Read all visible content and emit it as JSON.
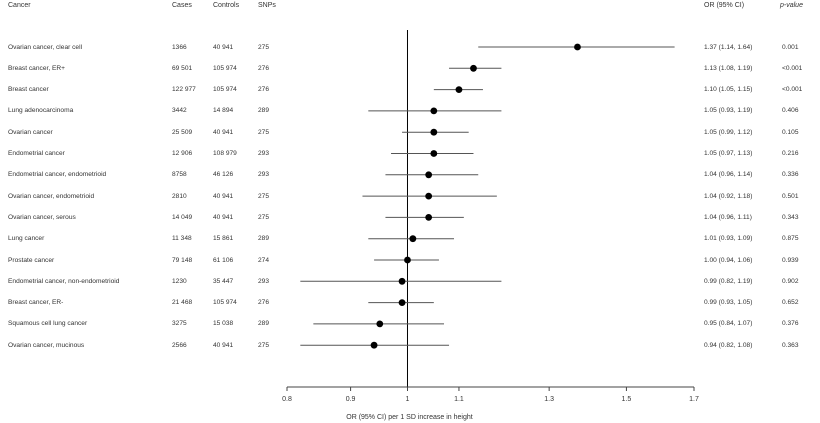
{
  "headers": {
    "cancer": "Cancer",
    "cases": "Cases",
    "controls": "Controls",
    "snps": "SNPs",
    "or": "OR (95% CI)",
    "p": "p-value"
  },
  "chart_data": {
    "type": "forest",
    "xlabel": "OR (95% CI) per 1 SD increase in height",
    "xlim": [
      0.8,
      1.7
    ],
    "xscale": "log",
    "xticks": [
      0.8,
      0.9,
      1,
      1.1,
      1.3,
      1.5,
      1.7
    ],
    "xtick_labels": [
      "0.8",
      "0.9",
      "1",
      "1.1",
      "1.3",
      "1.5",
      "1.7"
    ],
    "reference_line": 1,
    "rows": [
      {
        "cancer": "Ovarian cancer, clear cell",
        "cases": "1366",
        "controls": "40 941",
        "snps": "275",
        "or": 1.37,
        "lo": 1.14,
        "hi": 1.64,
        "or_text": "1.37 (1.14, 1.64)",
        "p": "0.001"
      },
      {
        "cancer": "Breast cancer, ER+",
        "cases": "69 501",
        "controls": "105 974",
        "snps": "276",
        "or": 1.13,
        "lo": 1.08,
        "hi": 1.19,
        "or_text": "1.13 (1.08, 1.19)",
        "p": "<0.001"
      },
      {
        "cancer": "Breast cancer",
        "cases": "122 977",
        "controls": "105 974",
        "snps": "276",
        "or": 1.1,
        "lo": 1.05,
        "hi": 1.15,
        "or_text": "1.10 (1.05, 1.15)",
        "p": "<0.001"
      },
      {
        "cancer": "Lung adenocarcinoma",
        "cases": "3442",
        "controls": "14 894",
        "snps": "289",
        "or": 1.05,
        "lo": 0.93,
        "hi": 1.19,
        "or_text": "1.05 (0.93, 1.19)",
        "p": "0.406"
      },
      {
        "cancer": "Ovarian cancer",
        "cases": "25 509",
        "controls": "40 941",
        "snps": "275",
        "or": 1.05,
        "lo": 0.99,
        "hi": 1.12,
        "or_text": "1.05 (0.99, 1.12)",
        "p": "0.105"
      },
      {
        "cancer": "Endometrial cancer",
        "cases": "12 906",
        "controls": "108 979",
        "snps": "293",
        "or": 1.05,
        "lo": 0.97,
        "hi": 1.13,
        "or_text": "1.05 (0.97, 1.13)",
        "p": "0.216"
      },
      {
        "cancer": "Endometrial cancer, endometrioid",
        "cases": "8758",
        "controls": "46 126",
        "snps": "293",
        "or": 1.04,
        "lo": 0.96,
        "hi": 1.14,
        "or_text": "1.04 (0.96, 1.14)",
        "p": "0.336"
      },
      {
        "cancer": "Ovarian cancer, endometrioid",
        "cases": "2810",
        "controls": "40 941",
        "snps": "275",
        "or": 1.04,
        "lo": 0.92,
        "hi": 1.18,
        "or_text": "1.04 (0.92, 1.18)",
        "p": "0.501"
      },
      {
        "cancer": "Ovarian cancer, serous",
        "cases": "14 049",
        "controls": "40 941",
        "snps": "275",
        "or": 1.04,
        "lo": 0.96,
        "hi": 1.11,
        "or_text": "1.04 (0.96, 1.11)",
        "p": "0.343"
      },
      {
        "cancer": "Lung cancer",
        "cases": "11 348",
        "controls": "15 861",
        "snps": "289",
        "or": 1.01,
        "lo": 0.93,
        "hi": 1.09,
        "or_text": "1.01 (0.93, 1.09)",
        "p": "0.875"
      },
      {
        "cancer": "Prostate cancer",
        "cases": "79 148",
        "controls": "61 106",
        "snps": "274",
        "or": 1.0,
        "lo": 0.94,
        "hi": 1.06,
        "or_text": "1.00 (0.94, 1.06)",
        "p": "0.939"
      },
      {
        "cancer": "Endometrial cancer, non-endometrioid",
        "cases": "1230",
        "controls": "35 447",
        "snps": "293",
        "or": 0.99,
        "lo": 0.82,
        "hi": 1.19,
        "or_text": "0.99 (0.82, 1.19)",
        "p": "0.902"
      },
      {
        "cancer": "Breast cancer, ER-",
        "cases": "21 468",
        "controls": "105 974",
        "snps": "276",
        "or": 0.99,
        "lo": 0.93,
        "hi": 1.05,
        "or_text": "0.99 (0.93, 1.05)",
        "p": "0.652"
      },
      {
        "cancer": "Squamous cell lung cancer",
        "cases": "3275",
        "controls": "15 038",
        "snps": "289",
        "or": 0.95,
        "lo": 0.84,
        "hi": 1.07,
        "or_text": "0.95 (0.84, 1.07)",
        "p": "0.376"
      },
      {
        "cancer": "Ovarian cancer, mucinous",
        "cases": "2566",
        "controls": "40 941",
        "snps": "275",
        "or": 0.94,
        "lo": 0.82,
        "hi": 1.08,
        "or_text": "0.94 (0.82, 1.08)",
        "p": "0.363"
      }
    ]
  }
}
